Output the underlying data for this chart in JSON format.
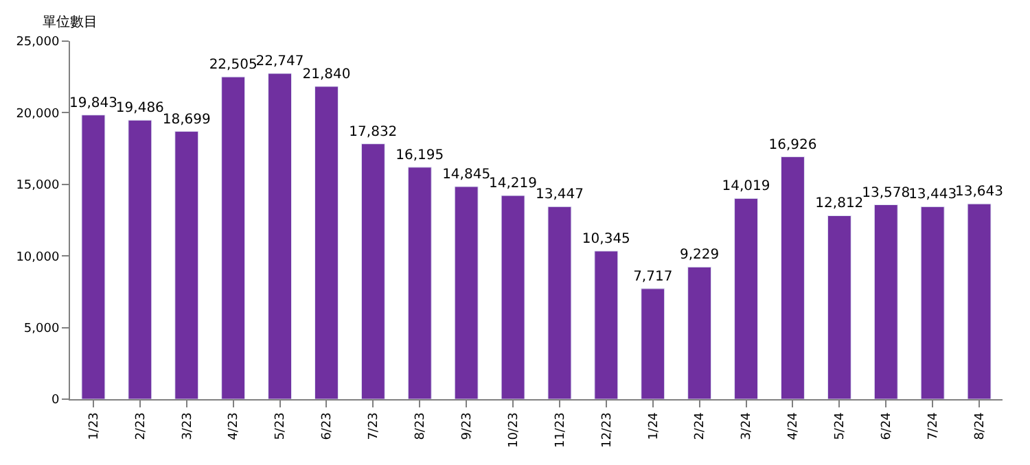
{
  "chart_data": {
    "type": "bar",
    "ylabel": "單位數目",
    "categories": [
      "1/23",
      "2/23",
      "3/23",
      "4/23",
      "5/23",
      "6/23",
      "7/23",
      "8/23",
      "9/23",
      "10/23",
      "11/23",
      "12/23",
      "1/24",
      "2/24",
      "3/24",
      "4/24",
      "5/24",
      "6/24",
      "7/24",
      "8/24"
    ],
    "values": [
      19843,
      19486,
      18699,
      22505,
      22747,
      21840,
      17832,
      16195,
      14845,
      14219,
      13447,
      10345,
      7717,
      9229,
      14019,
      16926,
      12812,
      13578,
      13443,
      13643
    ],
    "value_labels": [
      "19,843",
      "19,486",
      "18,699",
      "22,505",
      "22,747",
      "21,840",
      "17,832",
      "16,195",
      "14,845",
      "14,219",
      "13,447",
      "10,345",
      "7,717",
      "9,229",
      "14,019",
      "16,926",
      "12,812",
      "13,578",
      "13,443",
      "13,643"
    ],
    "color": "#7030a0",
    "ylim": [
      0,
      25000
    ],
    "yticks": [
      0,
      {
        "value": 5000,
        "label": "5,000"
      },
      {
        "value": 10000,
        "label": "10,000"
      },
      {
        "value": 15000,
        "label": "15,000"
      },
      {
        "value": 20000,
        "label": "20,000"
      },
      {
        "value": 25000,
        "label": "25,000"
      }
    ],
    "legend": false
  }
}
